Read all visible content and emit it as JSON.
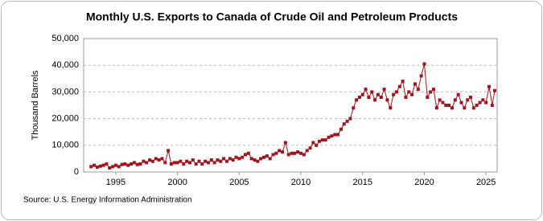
{
  "chart_data": {
    "type": "line",
    "title": "Monthly U.S. Exports to Canada of Crude Oil and Petroleum Products",
    "y_label": "Thousand Barrels",
    "source": "Source: U.S. Energy Information Administration",
    "x": [
      1993,
      1993.25,
      1993.5,
      1993.75,
      1994,
      1994.25,
      1994.5,
      1994.75,
      1995,
      1995.25,
      1995.5,
      1995.75,
      1996,
      1996.25,
      1996.5,
      1996.75,
      1997,
      1997.25,
      1997.5,
      1997.75,
      1998,
      1998.25,
      1998.5,
      1998.75,
      1999,
      1999.25,
      1999.5,
      1999.75,
      2000,
      2000.25,
      2000.5,
      2000.75,
      2001,
      2001.25,
      2001.5,
      2001.75,
      2002,
      2002.25,
      2002.5,
      2002.75,
      2003,
      2003.25,
      2003.5,
      2003.75,
      2004,
      2004.25,
      2004.5,
      2004.75,
      2005,
      2005.25,
      2005.5,
      2005.75,
      2006,
      2006.25,
      2006.5,
      2006.75,
      2007,
      2007.25,
      2007.5,
      2007.75,
      2008,
      2008.25,
      2008.5,
      2008.75,
      2009,
      2009.25,
      2009.5,
      2009.75,
      2010,
      2010.25,
      2010.5,
      2010.75,
      2011,
      2011.25,
      2011.5,
      2011.75,
      2012,
      2012.25,
      2012.5,
      2012.75,
      2013,
      2013.25,
      2013.5,
      2013.75,
      2014,
      2014.25,
      2014.5,
      2014.75,
      2015,
      2015.25,
      2015.5,
      2015.75,
      2016,
      2016.25,
      2016.5,
      2016.75,
      2017,
      2017.25,
      2017.5,
      2017.75,
      2018,
      2018.25,
      2018.5,
      2018.75,
      2019,
      2019.25,
      2019.5,
      2019.75,
      2020,
      2020.25,
      2020.5,
      2020.75,
      2021,
      2021.25,
      2021.5,
      2021.75,
      2022,
      2022.25,
      2022.5,
      2022.75,
      2023,
      2023.25,
      2023.5,
      2023.75,
      2024,
      2024.25,
      2024.5,
      2024.75,
      2025,
      2025.25,
      2025.5,
      2025.7
    ],
    "series": [
      {
        "name": "U.S. Exports to Canada of Crude Oil and Petroleum Products",
        "color": "#a0141e",
        "values": [
          2000,
          2500,
          1800,
          2200,
          2500,
          3000,
          1500,
          2000,
          2500,
          2000,
          2800,
          3000,
          2500,
          3000,
          3500,
          2800,
          3000,
          4000,
          3500,
          4500,
          4000,
          5000,
          4500,
          5000,
          3500,
          8000,
          3000,
          3500,
          3500,
          4000,
          3000,
          4000,
          3500,
          4500,
          3000,
          4000,
          3000,
          4000,
          3500,
          4500,
          3500,
          4500,
          4000,
          5000,
          4000,
          5000,
          4500,
          5500,
          5000,
          5500,
          6500,
          7000,
          5000,
          4500,
          4000,
          5000,
          5500,
          6000,
          5000,
          6500,
          7000,
          8000,
          7500,
          11000,
          6500,
          7000,
          7000,
          7500,
          7000,
          6500,
          8000,
          9000,
          11000,
          10000,
          11500,
          12000,
          12000,
          13000,
          13500,
          14000,
          14000,
          16000,
          18000,
          19000,
          20000,
          24000,
          27000,
          28000,
          29000,
          31000,
          28000,
          30000,
          27000,
          29000,
          28000,
          31000,
          27000,
          24000,
          29000,
          30000,
          32000,
          34000,
          28000,
          30000,
          29000,
          33000,
          31000,
          36000,
          40500,
          28000,
          30000,
          31000,
          24000,
          27000,
          26000,
          25000,
          25000,
          24000,
          27000,
          29000,
          26000,
          24000,
          27000,
          28000,
          24000,
          25000,
          26000,
          27000,
          26000,
          32000,
          25000,
          30500
        ]
      }
    ],
    "xlim": [
      1992.4,
      2025.9
    ],
    "xticks": [
      1995,
      2000,
      2005,
      2010,
      2015,
      2020,
      2025
    ],
    "ylim": [
      0,
      50000
    ],
    "yticks": [
      0,
      {
        "value": 10000,
        "label": "10,000"
      },
      {
        "value": 20000,
        "label": "20,000"
      },
      {
        "value": 30000,
        "label": "30,000"
      },
      {
        "value": 40000,
        "label": "40,000"
      },
      {
        "value": 50000,
        "label": "50,000"
      }
    ],
    "grid": true
  }
}
